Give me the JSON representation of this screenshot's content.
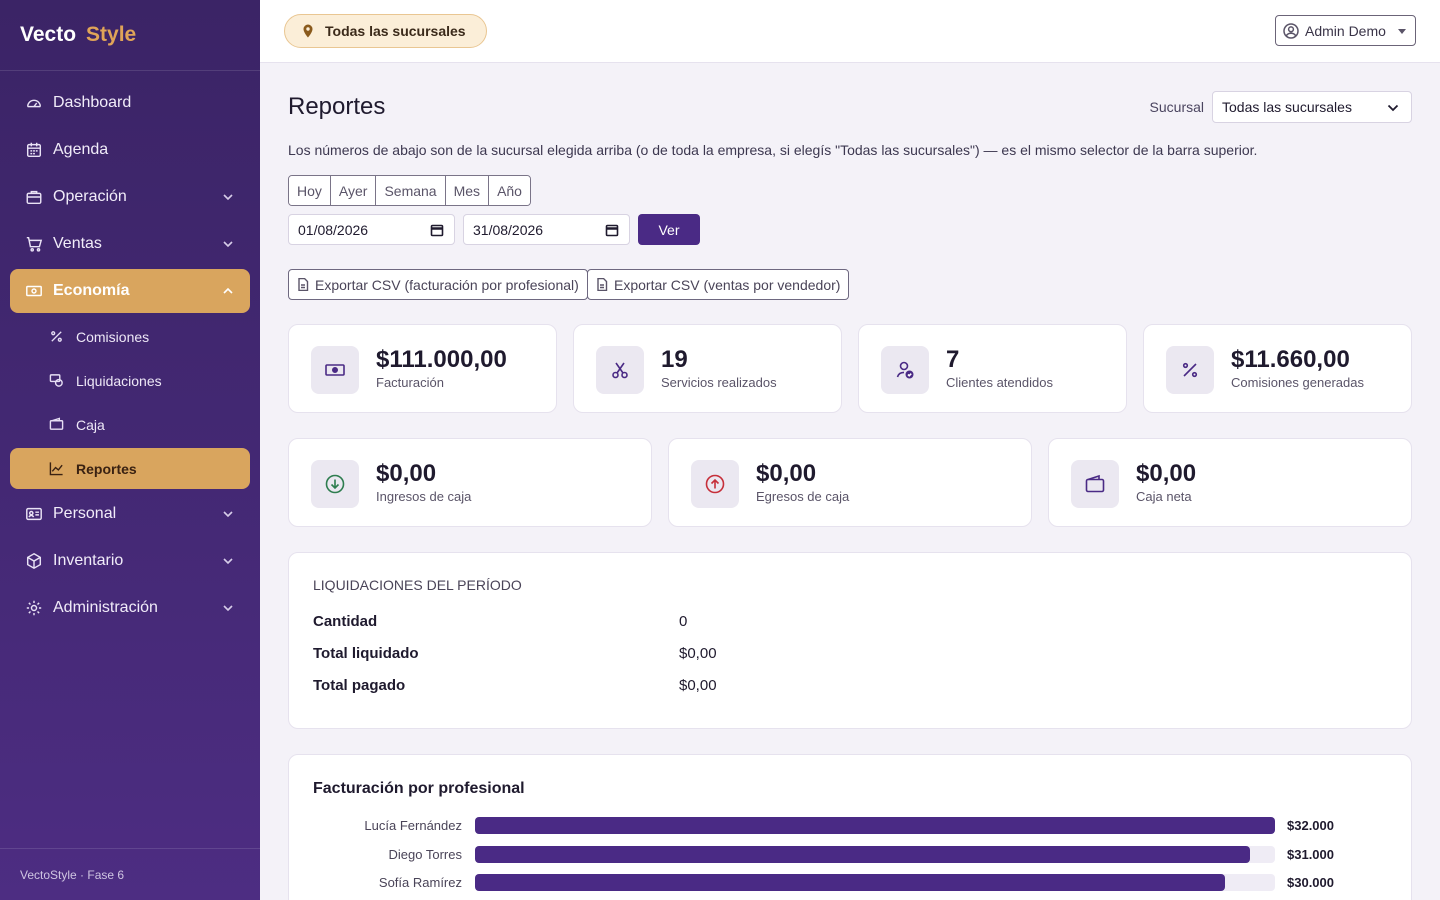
{
  "brand": {
    "part1": "Vecto",
    "part2": "Style"
  },
  "sidebar": {
    "items": [
      {
        "label": "Dashboard"
      },
      {
        "label": "Agenda"
      },
      {
        "label": "Operación"
      },
      {
        "label": "Ventas"
      },
      {
        "label": "Economía"
      },
      {
        "label": "Personal"
      },
      {
        "label": "Inventario"
      },
      {
        "label": "Administración"
      }
    ],
    "economia_sub": [
      {
        "label": "Comisiones"
      },
      {
        "label": "Liquidaciones"
      },
      {
        "label": "Caja"
      },
      {
        "label": "Reportes"
      }
    ],
    "footer": "VectoStyle · Fase 6"
  },
  "topbar": {
    "branch": "Todas las sucursales",
    "user": "Admin Demo"
  },
  "page": {
    "title": "Reportes",
    "branch_label": "Sucursal",
    "branch_value": "Todas las sucursales",
    "description": "Los números de abajo son de la sucursal elegida arriba (o de toda la empresa, si elegís \"Todas las sucursales\") — es el mismo selector de la barra superior.",
    "ranges": [
      "Hoy",
      "Ayer",
      "Semana",
      "Mes",
      "Año"
    ],
    "date_from": "01/08/2026",
    "date_to": "31/08/2026",
    "ver": "Ver",
    "export1": "Exportar CSV (facturación por profesional)",
    "export2": "Exportar CSV (ventas por vendedor)"
  },
  "stats": [
    {
      "value": "$111.000,00",
      "label": "Facturación"
    },
    {
      "value": "19",
      "label": "Servicios realizados"
    },
    {
      "value": "7",
      "label": "Clientes atendidos"
    },
    {
      "value": "$11.660,00",
      "label": "Comisiones generadas"
    },
    {
      "value": "$0,00",
      "label": "Ingresos de caja"
    },
    {
      "value": "$0,00",
      "label": "Egresos de caja"
    },
    {
      "value": "$0,00",
      "label": "Caja neta"
    }
  ],
  "liquidaciones": {
    "title": "LIQUIDACIONES DEL PERÍODO",
    "rows": [
      {
        "k": "Cantidad",
        "v": "0"
      },
      {
        "k": "Total liquidado",
        "v": "$0,00"
      },
      {
        "k": "Total pagado",
        "v": "$0,00"
      }
    ]
  },
  "chart_data": {
    "type": "bar",
    "title": "Facturación por profesional",
    "orientation": "horizontal",
    "categories": [
      "Lucía Fernández",
      "Diego Torres",
      "Sofía Ramírez"
    ],
    "values": [
      32000,
      31000,
      30000
    ],
    "value_labels": [
      "$32.000",
      "$31.000",
      "$30.000"
    ],
    "xlim": [
      0,
      32000
    ],
    "color": "#4a2a85"
  },
  "colors": {
    "accent": "#d9a55e",
    "primary": "#4a2a85",
    "sidebar": "#3b2466"
  }
}
